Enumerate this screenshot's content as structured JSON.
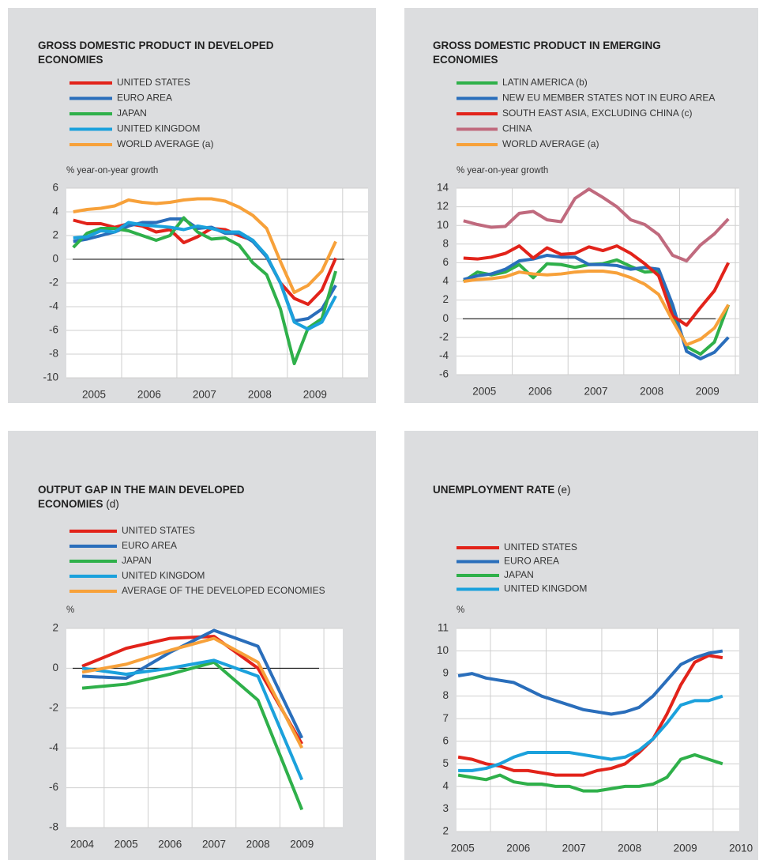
{
  "chart_data": [
    {
      "type": "line",
      "title": "GROSS DOMESTIC PRODUCT IN DEVELOPED ECONOMIES",
      "ylabel": "% year-on-year growth",
      "x": [
        2005.125,
        2005.375,
        2005.625,
        2005.875,
        2006.125,
        2006.375,
        2006.625,
        2006.875,
        2007.125,
        2007.375,
        2007.625,
        2007.875,
        2008.125,
        2008.375,
        2008.625,
        2008.875,
        2009.125,
        2009.375,
        2009.625,
        2009.875
      ],
      "xlim": [
        2005,
        2010.46
      ],
      "xticks": [
        {
          "value": 2005.5,
          "label": "2005"
        },
        {
          "value": 2006.5,
          "label": "2006"
        },
        {
          "value": 2007.5,
          "label": "2007"
        },
        {
          "value": 2008.5,
          "label": "2008"
        },
        {
          "value": 2009.5,
          "label": "2009"
        }
      ],
      "ylim": [
        -10,
        6
      ],
      "yticks": [
        -10,
        -8,
        -6,
        -4,
        -2,
        0,
        2,
        4,
        6
      ],
      "grid": true,
      "zero_line": true,
      "series": [
        {
          "name": "UNITED STATES",
          "color": "#e2231a",
          "values": [
            3.3,
            3.0,
            3.0,
            2.7,
            3.0,
            2.8,
            2.3,
            2.5,
            1.4,
            1.9,
            2.6,
            2.5,
            2.0,
            1.6,
            0.2,
            -2.0,
            -3.3,
            -3.8,
            -2.6,
            0.1
          ]
        },
        {
          "name": "EURO AREA",
          "color": "#2a6ebb",
          "values": [
            1.5,
            1.7,
            2.0,
            2.3,
            2.8,
            3.1,
            3.1,
            3.4,
            3.4,
            2.6,
            2.7,
            2.2,
            2.2,
            1.5,
            0.2,
            -2.0,
            -5.2,
            -5.0,
            -4.2,
            -2.2
          ]
        },
        {
          "name": "JAPAN",
          "color": "#2fb04a",
          "values": [
            1.0,
            2.2,
            2.6,
            2.6,
            2.4,
            2.0,
            1.6,
            2.0,
            3.5,
            2.3,
            1.7,
            1.8,
            1.2,
            -0.3,
            -1.3,
            -4.2,
            -8.8,
            -5.8,
            -5.0,
            -1.0
          ]
        },
        {
          "name": "UNITED KINGDOM",
          "color": "#1ba1dc",
          "values": [
            1.8,
            1.9,
            2.4,
            2.3,
            3.1,
            2.9,
            2.8,
            2.7,
            2.5,
            2.8,
            2.6,
            2.3,
            2.3,
            1.6,
            0.3,
            -2.0,
            -5.3,
            -5.9,
            -5.3,
            -3.1
          ]
        },
        {
          "name": "WORLD AVERAGE (a)",
          "color": "#f7a13a",
          "values": [
            4.0,
            4.2,
            4.3,
            4.5,
            5.0,
            4.8,
            4.7,
            4.8,
            5.0,
            5.1,
            5.1,
            4.9,
            4.4,
            3.7,
            2.6,
            -0.2,
            -2.8,
            -2.2,
            -1.0,
            1.5
          ]
        }
      ]
    },
    {
      "type": "line",
      "title": "GROSS DOMESTIC PRODUCT IN EMERGING ECONOMIES",
      "ylabel": "% year-on-year growth",
      "x": [
        2005.125,
        2005.375,
        2005.625,
        2005.875,
        2006.125,
        2006.375,
        2006.625,
        2006.875,
        2007.125,
        2007.375,
        2007.625,
        2007.875,
        2008.125,
        2008.375,
        2008.625,
        2008.875,
        2009.125,
        2009.375,
        2009.625,
        2009.875
      ],
      "xlim": [
        2005,
        2010.07
      ],
      "xticks": [
        {
          "value": 2005.5,
          "label": "2005"
        },
        {
          "value": 2006.5,
          "label": "2006"
        },
        {
          "value": 2007.5,
          "label": "2007"
        },
        {
          "value": 2008.5,
          "label": "2008"
        },
        {
          "value": 2009.5,
          "label": "2009"
        }
      ],
      "ylim": [
        -6,
        14
      ],
      "yticks": [
        -6,
        -4,
        -2,
        0,
        2,
        4,
        6,
        8,
        10,
        12,
        14
      ],
      "grid": true,
      "zero_line": true,
      "series": [
        {
          "name": "LATIN AMERICA (b)",
          "color": "#2fb04a",
          "values": [
            4.0,
            5.0,
            4.7,
            5.0,
            5.8,
            4.4,
            5.9,
            5.8,
            5.5,
            5.8,
            5.9,
            6.3,
            5.6,
            5.0,
            5.1,
            0.5,
            -3.0,
            -3.8,
            -2.5,
            1.5
          ]
        },
        {
          "name": "NEW EU MEMBER STATES NOT IN EURO AREA",
          "color": "#2a6ebb",
          "values": [
            4.2,
            4.6,
            4.8,
            5.3,
            6.2,
            6.4,
            6.8,
            6.6,
            6.6,
            5.8,
            5.8,
            5.7,
            5.3,
            5.5,
            5.3,
            1.5,
            -3.5,
            -4.3,
            -3.6,
            -2.0
          ]
        },
        {
          "name": "SOUTH EAST ASIA, EXCLUDING CHINA (c)",
          "color": "#e2231a",
          "values": [
            6.5,
            6.4,
            6.6,
            7.0,
            7.8,
            6.5,
            7.6,
            6.9,
            7.0,
            7.7,
            7.3,
            7.8,
            7.0,
            5.9,
            4.6,
            0.3,
            -0.7,
            1.2,
            3.0,
            6.0
          ]
        },
        {
          "name": "CHINA",
          "color": "#c06a7e",
          "values": [
            10.5,
            10.1,
            9.8,
            9.9,
            11.3,
            11.5,
            10.6,
            10.4,
            12.9,
            13.9,
            13.0,
            12.0,
            10.6,
            10.1,
            9.0,
            6.8,
            6.2,
            7.9,
            9.1,
            10.7
          ]
        },
        {
          "name": "WORLD AVERAGE (a)",
          "color": "#f7a13a",
          "values": [
            4.0,
            4.2,
            4.3,
            4.5,
            5.0,
            4.8,
            4.7,
            4.8,
            5.0,
            5.1,
            5.1,
            4.9,
            4.4,
            3.7,
            2.6,
            -0.2,
            -2.8,
            -2.2,
            -1.0,
            1.5
          ]
        }
      ]
    },
    {
      "type": "line",
      "title": "OUTPUT GAP IN THE MAIN DEVELOPED ECONOMIES",
      "title_note": "(d)",
      "ylabel": "%",
      "x": [
        2004,
        2005,
        2006,
        2007,
        2008,
        2009
      ],
      "xlim": [
        2003.64,
        2009.93
      ],
      "xticks": [
        2004,
        2005,
        2006,
        2007,
        2008,
        2009
      ],
      "ylim": [
        -8,
        2
      ],
      "yticks": [
        -8,
        -6,
        -4,
        -2,
        0,
        2
      ],
      "grid": true,
      "zero_line": true,
      "series": [
        {
          "name": "UNITED STATES",
          "color": "#e2231a",
          "values": [
            0.1,
            1.0,
            1.5,
            1.6,
            0.0,
            -3.8
          ]
        },
        {
          "name": "EURO AREA",
          "color": "#2a6ebb",
          "values": [
            -0.4,
            -0.5,
            0.8,
            1.9,
            1.1,
            -3.5
          ]
        },
        {
          "name": "JAPAN",
          "color": "#2fb04a",
          "values": [
            -1.0,
            -0.8,
            -0.3,
            0.3,
            -1.6,
            -7.1
          ]
        },
        {
          "name": "UNITED KINGDOM",
          "color": "#1ba1dc",
          "values": [
            0.0,
            -0.3,
            0.0,
            0.4,
            -0.4,
            -5.6
          ]
        },
        {
          "name": "AVERAGE OF THE DEVELOPED ECONOMIES",
          "color": "#f7a13a",
          "values": [
            -0.2,
            0.2,
            0.9,
            1.5,
            0.3,
            -4.0
          ]
        }
      ]
    },
    {
      "type": "line",
      "title": "UNEMPLOYMENT RATE",
      "title_note": "(e)",
      "ylabel": "%",
      "x": [
        2004.92,
        2005.17,
        2005.42,
        2005.67,
        2005.92,
        2006.17,
        2006.42,
        2006.67,
        2006.92,
        2007.17,
        2007.42,
        2007.67,
        2007.92,
        2008.17,
        2008.42,
        2008.67,
        2008.92,
        2009.17,
        2009.42,
        2009.67
      ],
      "xlim": [
        2004.89,
        2009.97
      ],
      "xticks": [
        2005,
        2006,
        2007,
        2008,
        2009,
        2010
      ],
      "ylim": [
        2,
        11
      ],
      "yticks": [
        2,
        3,
        4,
        5,
        6,
        7,
        8,
        9,
        10,
        11
      ],
      "grid": true,
      "zero_line": false,
      "series": [
        {
          "name": "UNITED STATES",
          "color": "#e2231a",
          "values": [
            5.3,
            5.2,
            5.0,
            4.9,
            4.7,
            4.7,
            4.6,
            4.5,
            4.5,
            4.5,
            4.7,
            4.8,
            5.0,
            5.5,
            6.1,
            7.2,
            8.5,
            9.5,
            9.8,
            9.7
          ]
        },
        {
          "name": "EURO AREA",
          "color": "#2a6ebb",
          "values": [
            8.9,
            9.0,
            8.8,
            8.7,
            8.6,
            8.3,
            8.0,
            7.8,
            7.6,
            7.4,
            7.3,
            7.2,
            7.3,
            7.5,
            8.0,
            8.7,
            9.4,
            9.7,
            9.9,
            10.0
          ]
        },
        {
          "name": "JAPAN",
          "color": "#2fb04a",
          "values": [
            4.5,
            4.4,
            4.3,
            4.5,
            4.2,
            4.1,
            4.1,
            4.0,
            4.0,
            3.8,
            3.8,
            3.9,
            4.0,
            4.0,
            4.1,
            4.4,
            5.2,
            5.4,
            5.2,
            5.0
          ]
        },
        {
          "name": "UNITED KINGDOM",
          "color": "#1ba1dc",
          "values": [
            4.7,
            4.7,
            4.8,
            5.0,
            5.3,
            5.5,
            5.5,
            5.5,
            5.5,
            5.4,
            5.3,
            5.2,
            5.3,
            5.6,
            6.1,
            6.8,
            7.6,
            7.8,
            7.8,
            8.0
          ]
        }
      ]
    }
  ]
}
